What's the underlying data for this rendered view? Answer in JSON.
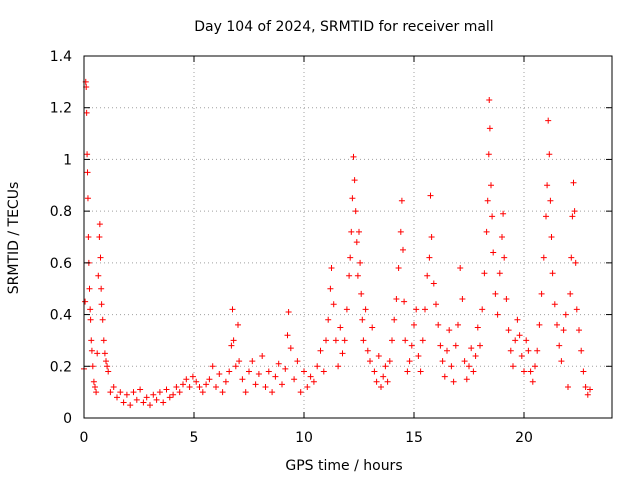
{
  "chart_data": {
    "type": "scatter",
    "title": "Day 104 of 2024, SRMTID for receiver mall",
    "xlabel": "GPS time / hours",
    "ylabel": "SRMTID / TECUs",
    "xlim": [
      0,
      24
    ],
    "ylim": [
      0,
      1.4
    ],
    "xticks": [
      0,
      5,
      10,
      15,
      20
    ],
    "xtick_labels": [
      "0",
      "5",
      "10",
      "15",
      "20"
    ],
    "yticks": [
      0,
      0.2,
      0.4,
      0.6,
      0.8,
      1.0,
      1.2,
      1.4
    ],
    "ytick_labels": [
      "0",
      "0.2",
      "0.4",
      "0.6",
      "0.8",
      "1",
      "1.2",
      "1.4"
    ],
    "grid": true,
    "marker": "+",
    "color": "#ff0000",
    "series": [
      {
        "name": "SRMTID",
        "points": [
          [
            0.0,
            0.19
          ],
          [
            0.05,
            0.45
          ],
          [
            0.08,
            1.3
          ],
          [
            0.1,
            1.28
          ],
          [
            0.12,
            1.18
          ],
          [
            0.14,
            1.02
          ],
          [
            0.16,
            0.95
          ],
          [
            0.18,
            0.85
          ],
          [
            0.2,
            0.7
          ],
          [
            0.22,
            0.6
          ],
          [
            0.25,
            0.5
          ],
          [
            0.28,
            0.42
          ],
          [
            0.3,
            0.38
          ],
          [
            0.33,
            0.3
          ],
          [
            0.36,
            0.26
          ],
          [
            0.4,
            0.2
          ],
          [
            0.45,
            0.14
          ],
          [
            0.5,
            0.12
          ],
          [
            0.55,
            0.1
          ],
          [
            0.6,
            0.25
          ],
          [
            0.65,
            0.55
          ],
          [
            0.7,
            0.7
          ],
          [
            0.72,
            0.75
          ],
          [
            0.75,
            0.62
          ],
          [
            0.78,
            0.5
          ],
          [
            0.8,
            0.44
          ],
          [
            0.85,
            0.38
          ],
          [
            0.9,
            0.3
          ],
          [
            0.95,
            0.25
          ],
          [
            1.0,
            0.22
          ],
          [
            1.05,
            0.2
          ],
          [
            1.1,
            0.18
          ],
          [
            1.2,
            0.1
          ],
          [
            1.35,
            0.12
          ],
          [
            1.5,
            0.08
          ],
          [
            1.65,
            0.1
          ],
          [
            1.8,
            0.06
          ],
          [
            1.95,
            0.09
          ],
          [
            2.1,
            0.05
          ],
          [
            2.25,
            0.1
          ],
          [
            2.4,
            0.07
          ],
          [
            2.55,
            0.11
          ],
          [
            2.7,
            0.06
          ],
          [
            2.85,
            0.08
          ],
          [
            3.0,
            0.05
          ],
          [
            3.15,
            0.09
          ],
          [
            3.3,
            0.07
          ],
          [
            3.45,
            0.1
          ],
          [
            3.6,
            0.06
          ],
          [
            3.75,
            0.11
          ],
          [
            3.9,
            0.08
          ],
          [
            4.05,
            0.09
          ],
          [
            4.2,
            0.12
          ],
          [
            4.35,
            0.1
          ],
          [
            4.5,
            0.13
          ],
          [
            4.65,
            0.15
          ],
          [
            4.8,
            0.12
          ],
          [
            4.95,
            0.16
          ],
          [
            5.1,
            0.14
          ],
          [
            5.25,
            0.12
          ],
          [
            5.4,
            0.1
          ],
          [
            5.55,
            0.13
          ],
          [
            5.7,
            0.15
          ],
          [
            5.85,
            0.2
          ],
          [
            6.0,
            0.12
          ],
          [
            6.15,
            0.17
          ],
          [
            6.3,
            0.1
          ],
          [
            6.45,
            0.14
          ],
          [
            6.6,
            0.18
          ],
          [
            6.7,
            0.28
          ],
          [
            6.75,
            0.42
          ],
          [
            6.8,
            0.3
          ],
          [
            6.9,
            0.2
          ],
          [
            7.0,
            0.36
          ],
          [
            7.05,
            0.22
          ],
          [
            7.2,
            0.15
          ],
          [
            7.35,
            0.1
          ],
          [
            7.5,
            0.18
          ],
          [
            7.65,
            0.22
          ],
          [
            7.8,
            0.13
          ],
          [
            7.95,
            0.17
          ],
          [
            8.1,
            0.24
          ],
          [
            8.25,
            0.12
          ],
          [
            8.4,
            0.18
          ],
          [
            8.55,
            0.1
          ],
          [
            8.7,
            0.16
          ],
          [
            8.85,
            0.21
          ],
          [
            9.0,
            0.13
          ],
          [
            9.15,
            0.19
          ],
          [
            9.25,
            0.32
          ],
          [
            9.3,
            0.41
          ],
          [
            9.4,
            0.27
          ],
          [
            9.55,
            0.15
          ],
          [
            9.7,
            0.22
          ],
          [
            9.85,
            0.1
          ],
          [
            10.0,
            0.18
          ],
          [
            10.15,
            0.12
          ],
          [
            10.3,
            0.16
          ],
          [
            10.45,
            0.14
          ],
          [
            10.6,
            0.2
          ],
          [
            10.75,
            0.26
          ],
          [
            10.9,
            0.18
          ],
          [
            11.0,
            0.3
          ],
          [
            11.1,
            0.38
          ],
          [
            11.2,
            0.5
          ],
          [
            11.25,
            0.58
          ],
          [
            11.35,
            0.44
          ],
          [
            11.45,
            0.3
          ],
          [
            11.55,
            0.2
          ],
          [
            11.65,
            0.35
          ],
          [
            11.75,
            0.25
          ],
          [
            11.85,
            0.3
          ],
          [
            11.95,
            0.42
          ],
          [
            12.05,
            0.55
          ],
          [
            12.1,
            0.62
          ],
          [
            12.15,
            0.72
          ],
          [
            12.2,
            0.85
          ],
          [
            12.25,
            1.01
          ],
          [
            12.3,
            0.92
          ],
          [
            12.35,
            0.8
          ],
          [
            12.4,
            0.68
          ],
          [
            12.45,
            0.55
          ],
          [
            12.5,
            0.72
          ],
          [
            12.55,
            0.6
          ],
          [
            12.6,
            0.48
          ],
          [
            12.65,
            0.38
          ],
          [
            12.7,
            0.3
          ],
          [
            12.8,
            0.42
          ],
          [
            12.9,
            0.26
          ],
          [
            13.0,
            0.22
          ],
          [
            13.1,
            0.35
          ],
          [
            13.2,
            0.18
          ],
          [
            13.3,
            0.14
          ],
          [
            13.4,
            0.24
          ],
          [
            13.5,
            0.12
          ],
          [
            13.6,
            0.16
          ],
          [
            13.7,
            0.2
          ],
          [
            13.8,
            0.14
          ],
          [
            13.9,
            0.22
          ],
          [
            14.0,
            0.3
          ],
          [
            14.1,
            0.38
          ],
          [
            14.2,
            0.46
          ],
          [
            14.3,
            0.58
          ],
          [
            14.4,
            0.72
          ],
          [
            14.45,
            0.84
          ],
          [
            14.5,
            0.65
          ],
          [
            14.55,
            0.45
          ],
          [
            14.6,
            0.3
          ],
          [
            14.7,
            0.18
          ],
          [
            14.8,
            0.22
          ],
          [
            14.9,
            0.28
          ],
          [
            15.0,
            0.36
          ],
          [
            15.1,
            0.42
          ],
          [
            15.2,
            0.24
          ],
          [
            15.3,
            0.18
          ],
          [
            15.4,
            0.3
          ],
          [
            15.5,
            0.42
          ],
          [
            15.6,
            0.55
          ],
          [
            15.7,
            0.62
          ],
          [
            15.75,
            0.86
          ],
          [
            15.8,
            0.7
          ],
          [
            15.9,
            0.52
          ],
          [
            16.0,
            0.44
          ],
          [
            16.1,
            0.36
          ],
          [
            16.2,
            0.28
          ],
          [
            16.3,
            0.22
          ],
          [
            16.4,
            0.16
          ],
          [
            16.5,
            0.26
          ],
          [
            16.6,
            0.34
          ],
          [
            16.7,
            0.2
          ],
          [
            16.8,
            0.14
          ],
          [
            16.9,
            0.28
          ],
          [
            17.0,
            0.36
          ],
          [
            17.1,
            0.58
          ],
          [
            17.2,
            0.46
          ],
          [
            17.3,
            0.22
          ],
          [
            17.4,
            0.15
          ],
          [
            17.5,
            0.2
          ],
          [
            17.6,
            0.27
          ],
          [
            17.7,
            0.18
          ],
          [
            17.8,
            0.24
          ],
          [
            17.9,
            0.35
          ],
          [
            18.0,
            0.28
          ],
          [
            18.1,
            0.42
          ],
          [
            18.2,
            0.56
          ],
          [
            18.3,
            0.72
          ],
          [
            18.35,
            0.84
          ],
          [
            18.4,
            1.02
          ],
          [
            18.42,
            1.23
          ],
          [
            18.45,
            1.12
          ],
          [
            18.5,
            0.9
          ],
          [
            18.55,
            0.78
          ],
          [
            18.6,
            0.64
          ],
          [
            18.7,
            0.48
          ],
          [
            18.8,
            0.4
          ],
          [
            18.9,
            0.56
          ],
          [
            19.0,
            0.7
          ],
          [
            19.05,
            0.79
          ],
          [
            19.1,
            0.62
          ],
          [
            19.2,
            0.46
          ],
          [
            19.3,
            0.34
          ],
          [
            19.4,
            0.26
          ],
          [
            19.5,
            0.2
          ],
          [
            19.6,
            0.3
          ],
          [
            19.7,
            0.38
          ],
          [
            19.8,
            0.32
          ],
          [
            19.9,
            0.24
          ],
          [
            20.0,
            0.18
          ],
          [
            20.1,
            0.3
          ],
          [
            20.2,
            0.26
          ],
          [
            20.3,
            0.18
          ],
          [
            20.4,
            0.14
          ],
          [
            20.5,
            0.2
          ],
          [
            20.6,
            0.26
          ],
          [
            20.7,
            0.36
          ],
          [
            20.8,
            0.48
          ],
          [
            20.9,
            0.62
          ],
          [
            21.0,
            0.78
          ],
          [
            21.05,
            0.9
          ],
          [
            21.1,
            1.15
          ],
          [
            21.15,
            1.02
          ],
          [
            21.2,
            0.84
          ],
          [
            21.25,
            0.7
          ],
          [
            21.3,
            0.56
          ],
          [
            21.4,
            0.44
          ],
          [
            21.5,
            0.36
          ],
          [
            21.6,
            0.28
          ],
          [
            21.7,
            0.22
          ],
          [
            21.8,
            0.34
          ],
          [
            21.9,
            0.4
          ],
          [
            22.0,
            0.12
          ],
          [
            22.1,
            0.48
          ],
          [
            22.15,
            0.62
          ],
          [
            22.2,
            0.78
          ],
          [
            22.25,
            0.91
          ],
          [
            22.3,
            0.8
          ],
          [
            22.35,
            0.6
          ],
          [
            22.4,
            0.42
          ],
          [
            22.5,
            0.34
          ],
          [
            22.6,
            0.26
          ],
          [
            22.7,
            0.18
          ],
          [
            22.8,
            0.12
          ],
          [
            22.9,
            0.09
          ],
          [
            23.0,
            0.11
          ]
        ]
      }
    ]
  }
}
